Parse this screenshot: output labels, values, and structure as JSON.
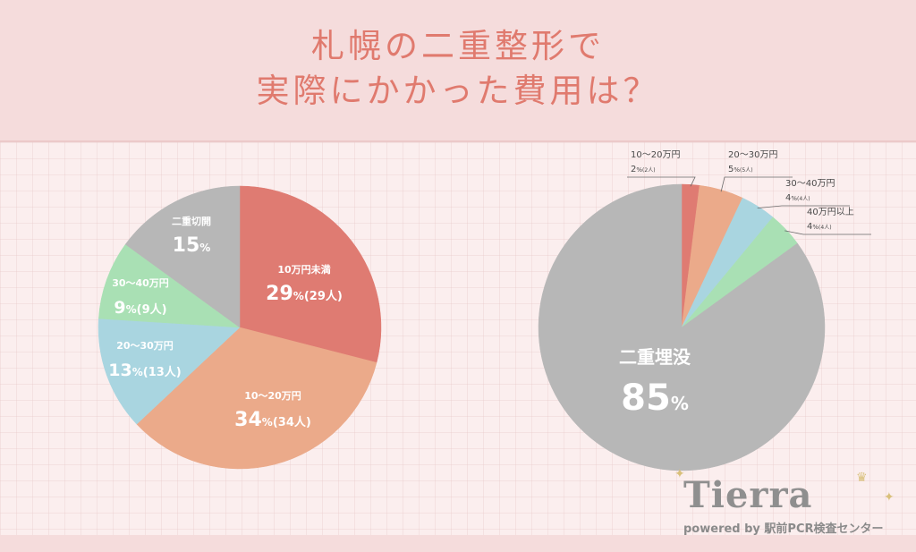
{
  "title": {
    "line1": "札幌の二重整形で",
    "line2": "実際にかかった費用は？"
  },
  "chart_data": [
    {
      "type": "pie",
      "slices": [
        {
          "label": "10万円未満",
          "percent": 29,
          "count_label": "(29人)",
          "color": "#df7b72"
        },
        {
          "label": "10〜20万円",
          "percent": 34,
          "count_label": "(34人)",
          "color": "#ebaa8a"
        },
        {
          "label": "20〜30万円",
          "percent": 13,
          "count_label": "(13人)",
          "color": "#a9d5e0"
        },
        {
          "label": "30〜40万円",
          "percent": 9,
          "count_label": "(9人)",
          "color": "#a9e0b4"
        },
        {
          "label": "二重切開",
          "percent": 15,
          "count_label": "",
          "color": "#b7b7b7"
        }
      ]
    },
    {
      "type": "pie",
      "slices": [
        {
          "label": "10〜20万円",
          "percent": 2,
          "count_label": "(2人)",
          "color": "#df7b72"
        },
        {
          "label": "20〜30万円",
          "percent": 5,
          "count_label": "(5人)",
          "color": "#ebaa8a"
        },
        {
          "label": "30〜40万円",
          "percent": 4,
          "count_label": "(4人)",
          "color": "#a9d5e0"
        },
        {
          "label": "40万円以上",
          "percent": 4,
          "count_label": "(4人)",
          "color": "#a9e0b4"
        },
        {
          "label": "二重埋没",
          "percent": 85,
          "count_label": "",
          "color": "#b7b7b7"
        }
      ]
    }
  ],
  "percent_symbol": "%",
  "logo": {
    "name": "Tierra",
    "tagline": "powered by 駅前PCR検査センター"
  }
}
